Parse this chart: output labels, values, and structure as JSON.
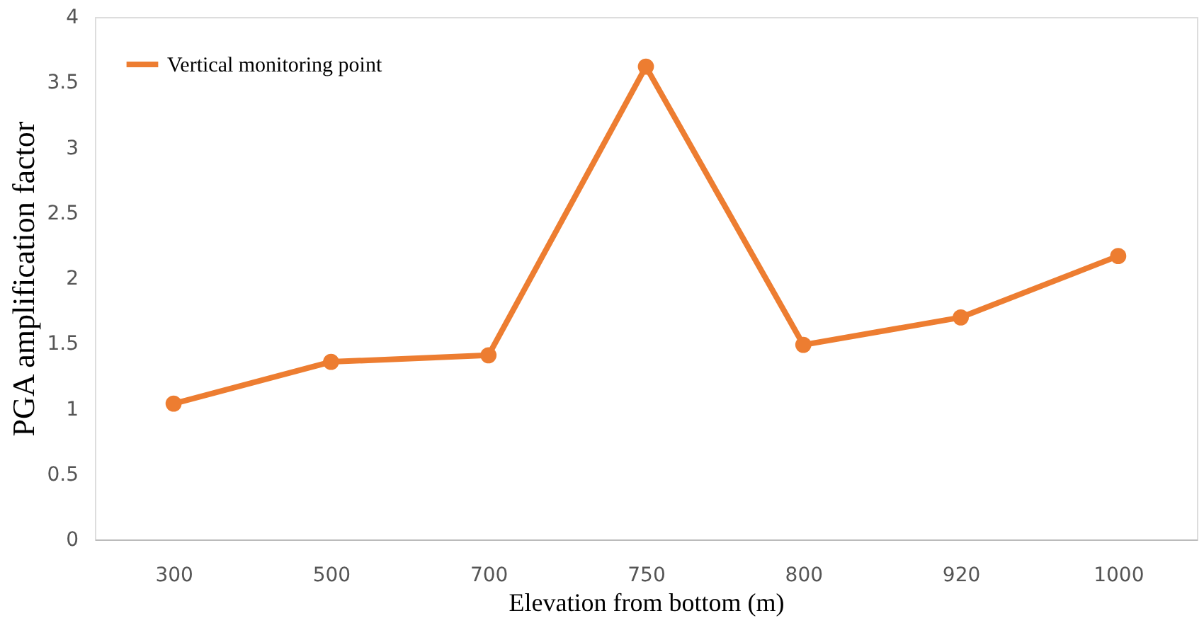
{
  "chart_data": {
    "type": "line",
    "xlabel": "Elevation from bottom (m)",
    "ylabel": "PGA amplification factor",
    "categories": [
      "300",
      "500",
      "700",
      "750",
      "800",
      "920",
      "1000"
    ],
    "series": [
      {
        "name": "Vertical monitoring point",
        "color": "#ed7d31",
        "values": [
          1.04,
          1.36,
          1.41,
          3.62,
          1.49,
          1.7,
          2.17
        ]
      }
    ],
    "ylim": [
      0,
      4
    ],
    "yticks": [
      0,
      0.5,
      1,
      1.5,
      2,
      2.5,
      3,
      3.5,
      4
    ],
    "grid": false,
    "legend": "top left",
    "marker": "circle",
    "line_style": "solid"
  }
}
